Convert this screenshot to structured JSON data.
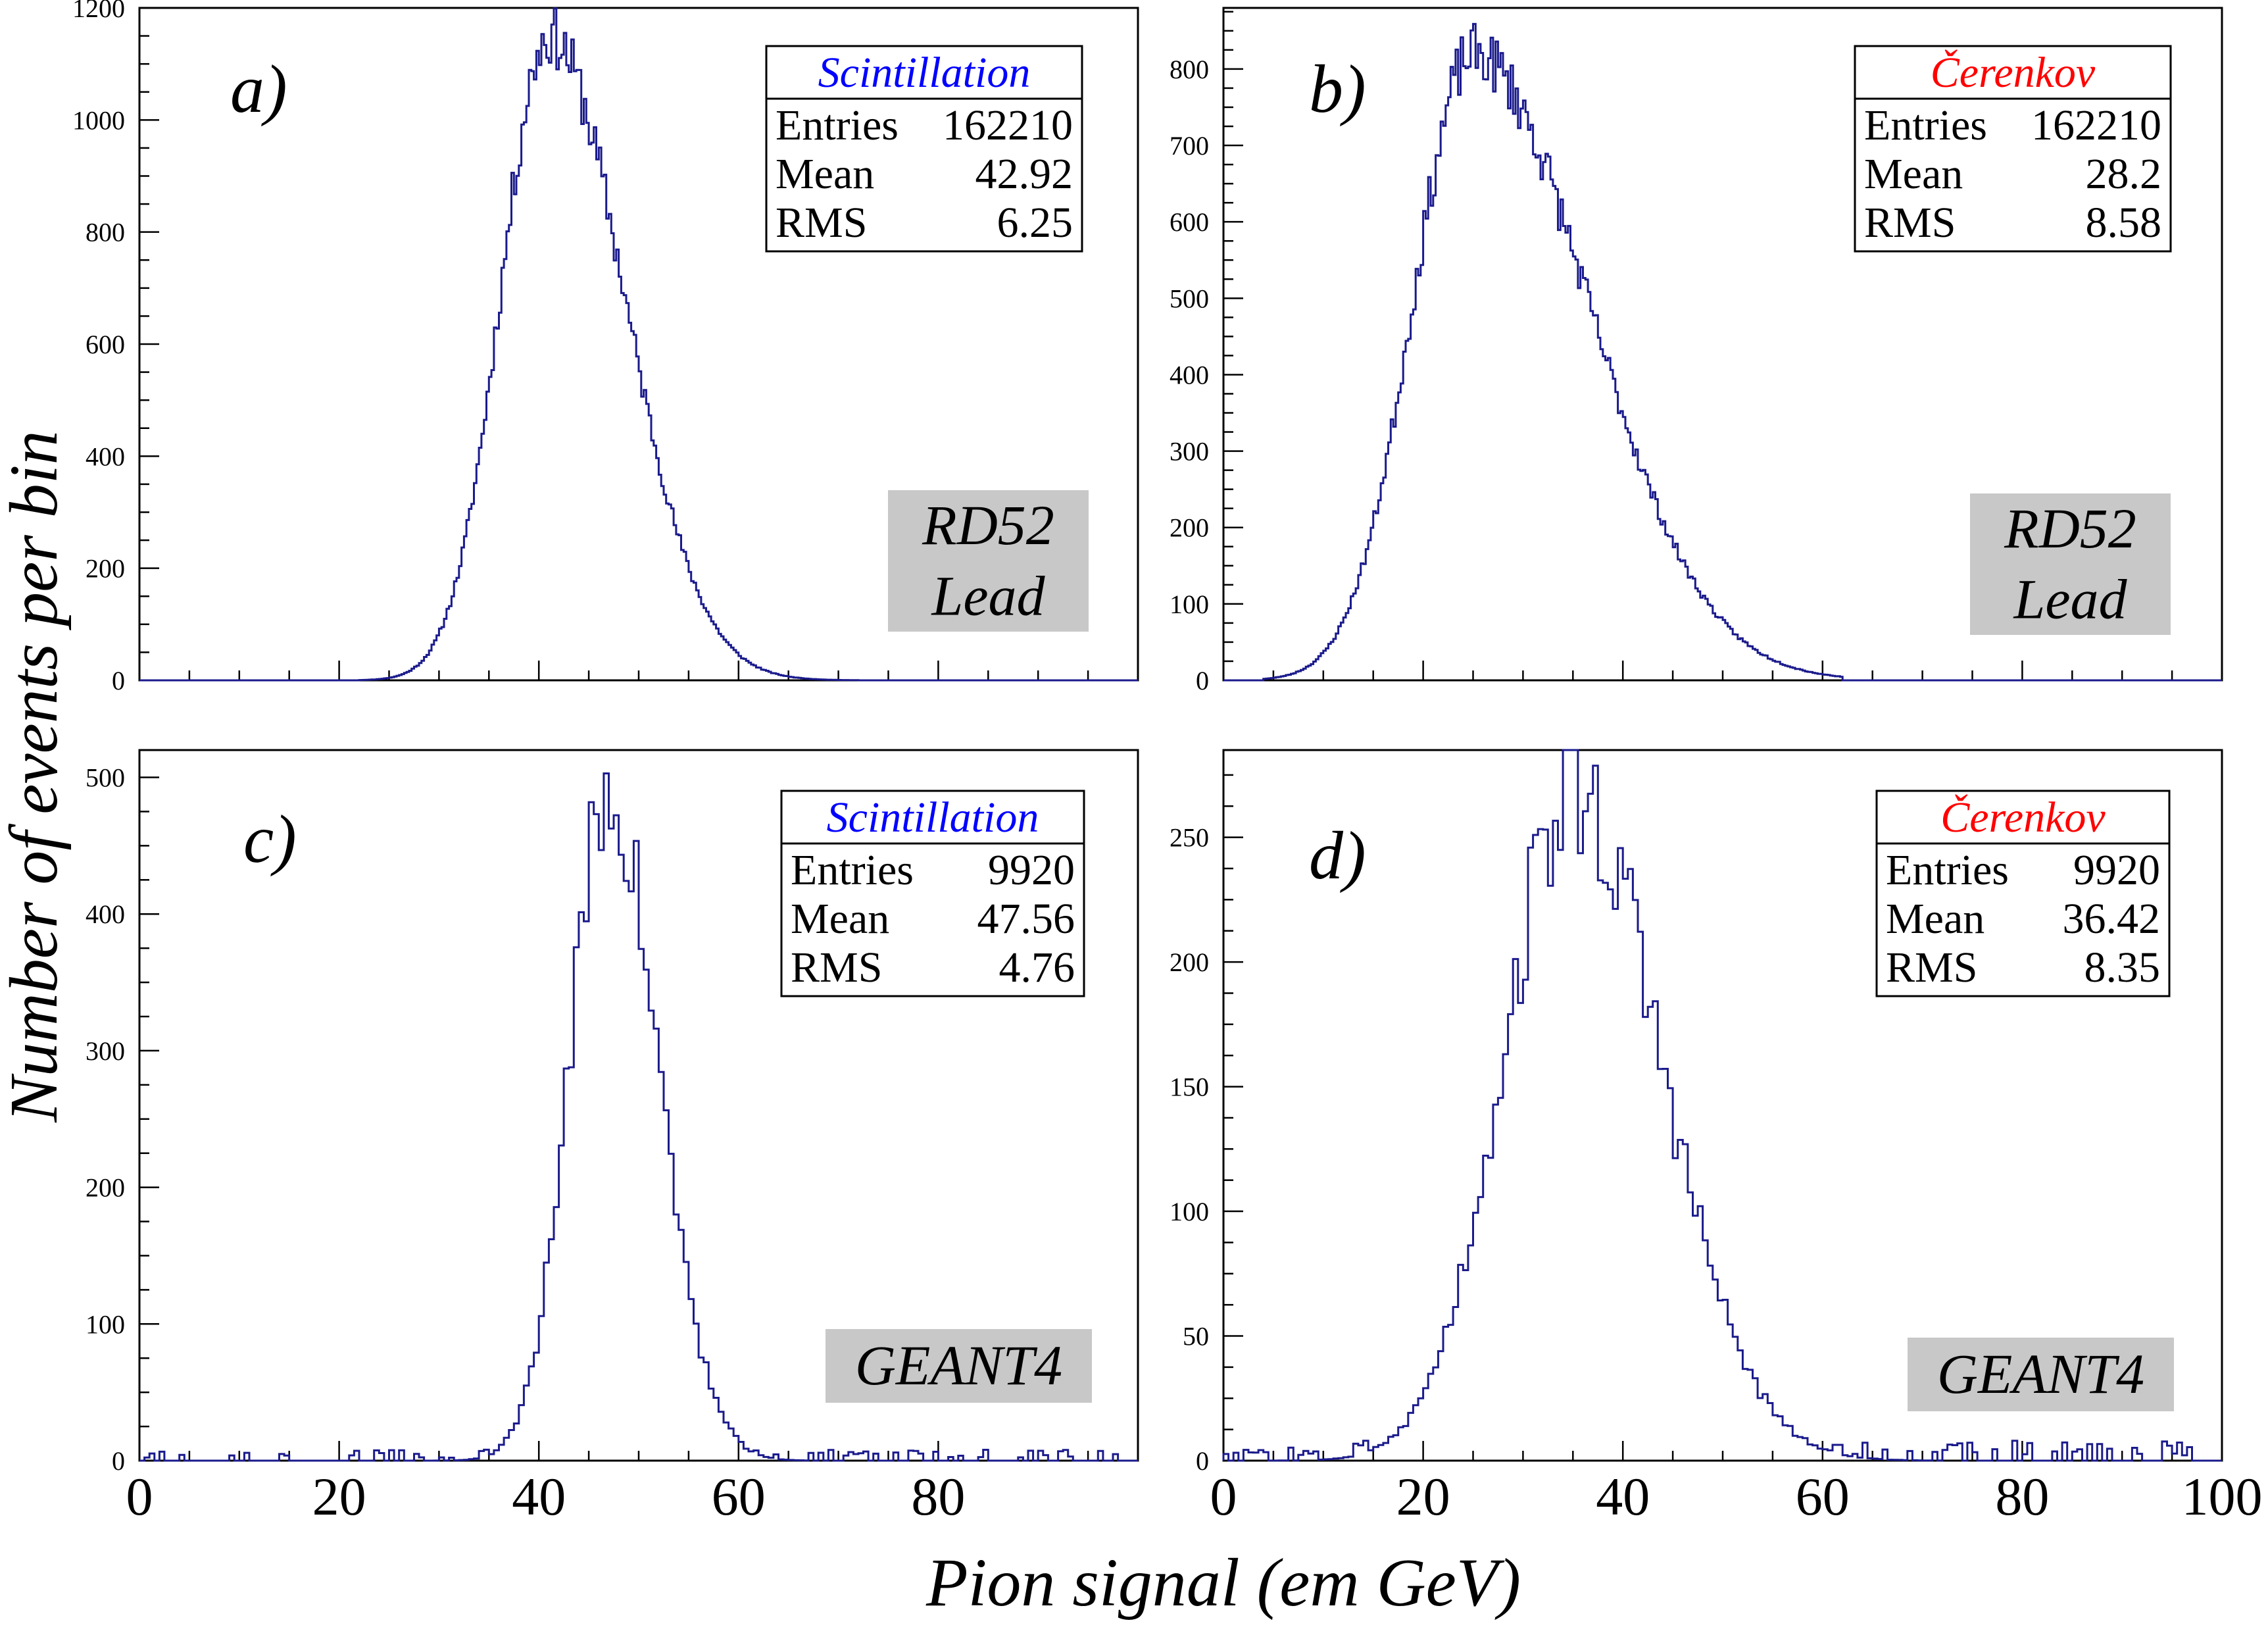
{
  "figure": {
    "ylabel": "Number of events per bin",
    "xlabel": "Pion signal (em GeV)"
  },
  "colors": {
    "histogram": "#1a1a8c",
    "scintillation_title": "#0000ff",
    "cerenkov_title": "#ff0000",
    "label_box": "#c8c8c8",
    "axis": "#000000"
  },
  "chart_data": [
    {
      "id": "a",
      "type": "histogram",
      "panel_label": "a)",
      "stats": {
        "title": "Scintillation",
        "entries_label": "Entries",
        "entries": "162210",
        "mean_label": "Mean",
        "mean": "42.92",
        "rms_label": "RMS",
        "rms": "6.25"
      },
      "tag": [
        "RD52",
        "Lead"
      ],
      "xlim": [
        0,
        100
      ],
      "ylim": [
        0,
        1200
      ],
      "yticks": [
        0,
        200,
        400,
        600,
        800,
        1000,
        1200
      ],
      "xticks": [],
      "shape": {
        "peak_x": 41,
        "peak_y": 1150,
        "sigma_left": 4.8,
        "sigma_right": 7.5,
        "noise": 0.03,
        "bin_width": 0.25,
        "start": 22,
        "end": 72
      }
    },
    {
      "id": "b",
      "type": "histogram",
      "panel_label": "b)",
      "stats": {
        "title": "Čerenkov",
        "entries_label": "Entries",
        "entries": "162210",
        "mean_label": "Mean",
        "mean": "28.2",
        "rms_label": "RMS",
        "rms": "8.58"
      },
      "tag": [
        "RD52",
        "Lead"
      ],
      "xlim": [
        0,
        100
      ],
      "ylim": [
        0,
        880
      ],
      "yticks": [
        0,
        100,
        200,
        300,
        400,
        500,
        600,
        700,
        800
      ],
      "xticks": [],
      "shape": {
        "peak_x": 25,
        "peak_y": 820,
        "sigma_left": 6.0,
        "sigma_right": 11.5,
        "noise": 0.03,
        "bin_width": 0.25,
        "start": 4,
        "end": 62
      }
    },
    {
      "id": "c",
      "type": "histogram",
      "panel_label": "c)",
      "stats": {
        "title": "Scintillation",
        "entries_label": "Entries",
        "entries": "9920",
        "mean_label": "Mean",
        "mean": "47.56",
        "rms_label": "RMS",
        "rms": "4.76"
      },
      "tag": [
        "GEANT4"
      ],
      "xlim": [
        0,
        100
      ],
      "ylim": [
        0,
        520
      ],
      "yticks": [
        0,
        100,
        200,
        300,
        400,
        500
      ],
      "xticks": [
        0,
        20,
        40,
        60,
        80
      ],
      "shape": {
        "peak_x": 47,
        "peak_y": 490,
        "sigma_left": 3.9,
        "sigma_right": 4.9,
        "noise": 0.06,
        "bin_width": 0.5,
        "start": 0,
        "end": 100
      }
    },
    {
      "id": "d",
      "type": "histogram",
      "panel_label": "d)",
      "stats": {
        "title": "Čerenkov",
        "entries_label": "Entries",
        "entries": "9920",
        "mean_label": "Mean",
        "mean": "36.42",
        "rms_label": "RMS",
        "rms": "8.35"
      },
      "tag": [
        "GEANT4"
      ],
      "xlim": [
        0,
        100
      ],
      "ylim": [
        0,
        285
      ],
      "yticks": [
        0,
        50,
        100,
        150,
        200,
        250
      ],
      "xticks": [
        0,
        20,
        40,
        60,
        80,
        100
      ],
      "shape": {
        "peak_x": 35,
        "peak_y": 268,
        "sigma_left": 7.0,
        "sigma_right": 8.8,
        "noise": 0.07,
        "bin_width": 0.5,
        "start": 0,
        "end": 100
      }
    }
  ]
}
